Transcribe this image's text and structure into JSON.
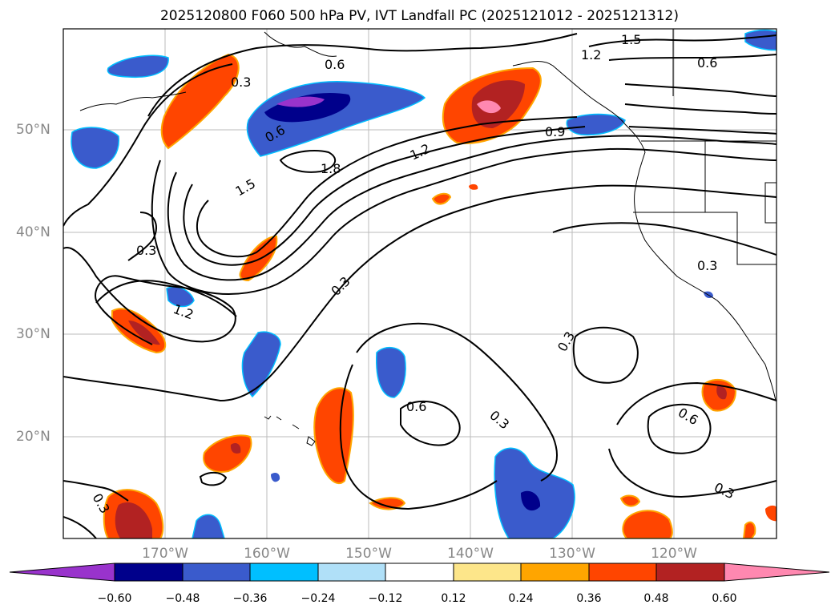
{
  "title": "2025120800 F060 500 hPa PV, IVT Landfall PC (2025121012 - 2025121312)",
  "lat_labels": [
    "50°N",
    "40°N",
    "30°N",
    "20°N"
  ],
  "lon_labels": [
    "170°W",
    "160°W",
    "150°W",
    "140°W",
    "130°W",
    "120°W"
  ],
  "contour_labels": [
    "0.3",
    "0.6",
    "0.9",
    "1.2",
    "1.5",
    "1.8"
  ],
  "colorbar": {
    "ticks": [
      "−0.60",
      "−0.48",
      "−0.36",
      "−0.24",
      "−0.12",
      "0.12",
      "0.24",
      "0.36",
      "0.48",
      "0.60"
    ],
    "colors": [
      "#9933cc",
      "#00008b",
      "#3a5bcc",
      "#00bfff",
      "#b0e0f8",
      "#ffffff",
      "#fde68a",
      "#ffa500",
      "#ff4500",
      "#b22222",
      "#ff88b0"
    ]
  }
}
